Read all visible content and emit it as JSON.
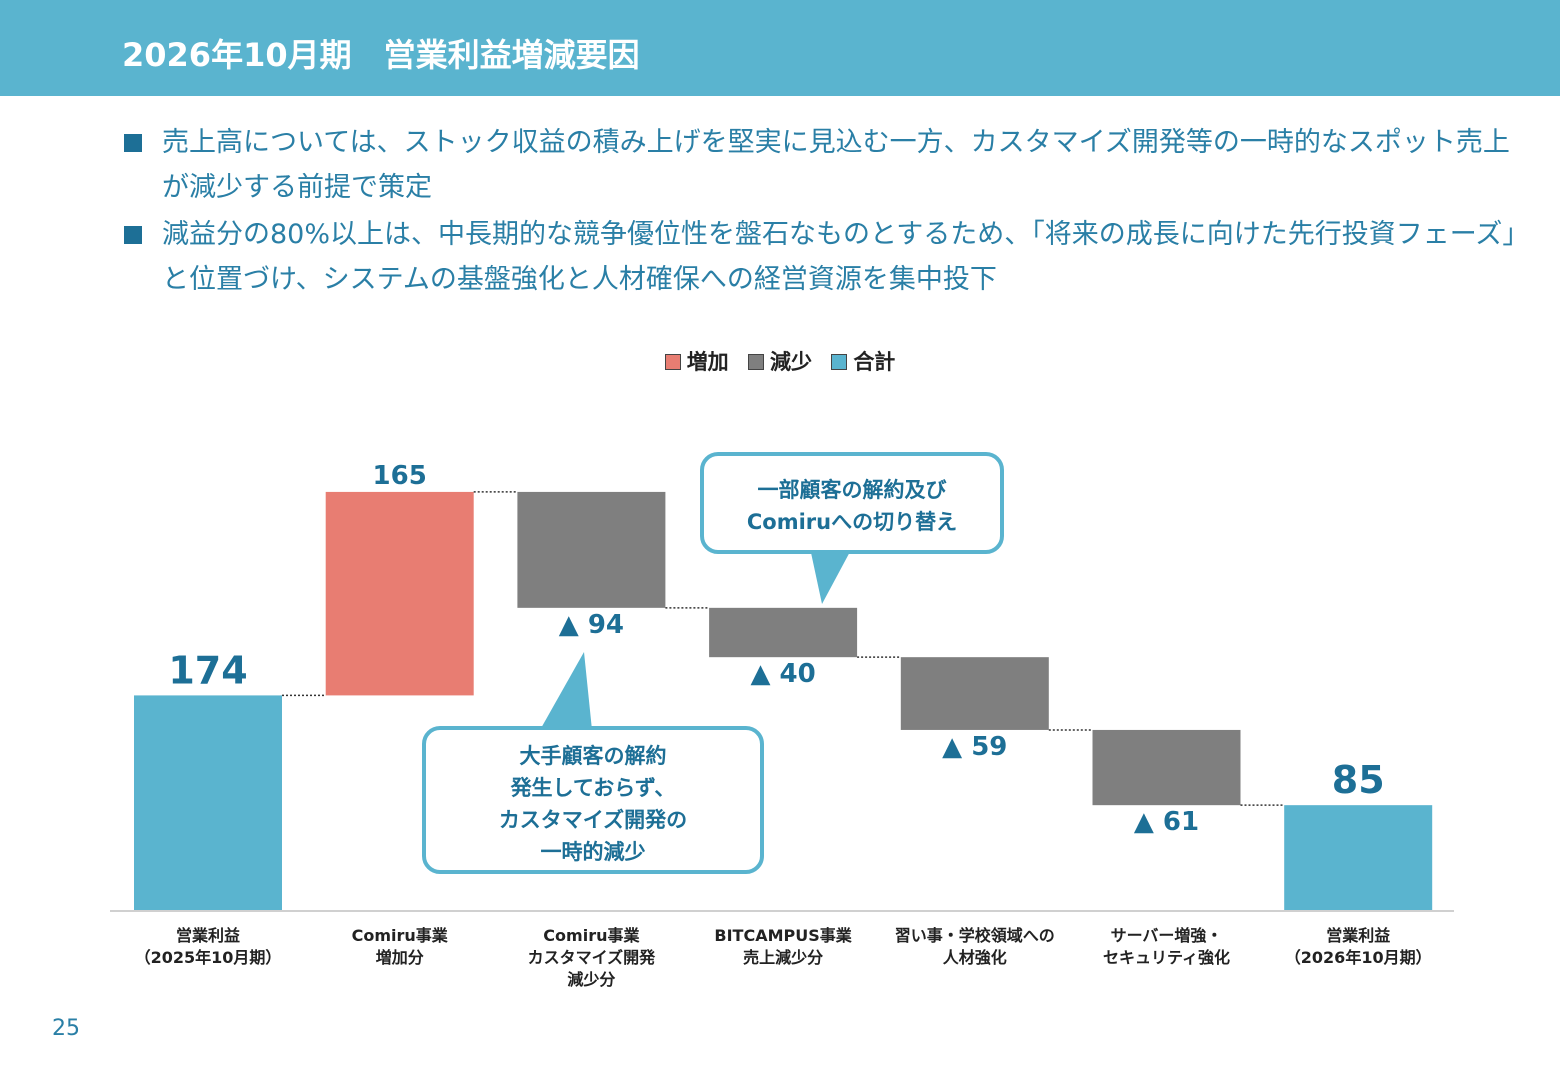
{
  "header": {
    "title": "2026年10月期　営業利益増減要因"
  },
  "bullets": [
    "売上高については、ストック収益の積み上げを堅実に見込む一方、カスタマイズ開発等の一時的なスポット売上が減少する前提で策定",
    "減益分の80%以上は、中長期的な競争優位性を盤石なものとするため、「将来の成長に向けた先行投資フェーズ」と位置づけ、システムの基盤強化と人材確保への経営資源を集中投下"
  ],
  "legend": [
    {
      "label": "増加",
      "color": "#e87d72"
    },
    {
      "label": "減少",
      "color": "#7f7f7f"
    },
    {
      "label": "合計",
      "color": "#5ab4cf"
    }
  ],
  "callouts": {
    "top": "一部顧客の解約及び\nComiruへの切り替え",
    "bottom": "大手顧客の解約\n発生しておらず、\nカスタマイズ開発の\n一時的減少"
  },
  "page_number": "25",
  "chart_data": {
    "type": "bar",
    "subtype": "waterfall",
    "legend_position": "top-center",
    "grid": false,
    "categories": [
      "営業利益\n（2025年10月期）",
      "Comiru事業\n増加分",
      "Comiru事業\nカスタマイズ開発\n減少分",
      "BITCAMPUS事業\n売上減少分",
      "習い事・学校領域への\n人材強化",
      "サーバー増強・\nセキュリティ強化",
      "営業利益\n（2026年10月期）"
    ],
    "values": [
      174,
      165,
      -94,
      -40,
      -59,
      -61,
      85
    ],
    "kinds": [
      "total",
      "increase",
      "decrease",
      "decrease",
      "decrease",
      "decrease",
      "total"
    ],
    "value_labels": [
      "174",
      "165",
      "▲ 94",
      "▲ 40",
      "▲ 59",
      "▲ 61",
      "85"
    ],
    "colors": {
      "total": "#5ab4cf",
      "increase": "#e87d72",
      "decrease": "#7f7f7f"
    }
  }
}
